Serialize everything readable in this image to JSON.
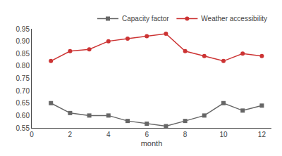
{
  "chart_data": {
    "type": "line",
    "xlabel": "month",
    "x": [
      1,
      2,
      3,
      4,
      5,
      6,
      7,
      8,
      9,
      10,
      11,
      12
    ],
    "series": [
      {
        "name": "Capacity factor",
        "color": "#666666",
        "marker": "square",
        "values": [
          0.65,
          0.61,
          0.6,
          0.6,
          0.578,
          0.567,
          0.557,
          0.578,
          0.6,
          0.65,
          0.62,
          0.64
        ]
      },
      {
        "name": "Weather accessibility",
        "color": "#cc3333",
        "marker": "circle",
        "values": [
          0.82,
          0.86,
          0.867,
          0.9,
          0.91,
          0.92,
          0.93,
          0.86,
          0.84,
          0.82,
          0.85,
          0.84
        ]
      }
    ],
    "xlim": [
      0,
      12.5
    ],
    "xticks": [
      0,
      2,
      4,
      6,
      8,
      10,
      12
    ],
    "ylim": [
      0.55,
      0.95
    ],
    "yticks": [
      0.55,
      {
        "value": 0.6,
        "label": "0.60"
      },
      0.65,
      {
        "value": 0.7,
        "label": "0.70"
      },
      0.75,
      {
        "value": 0.8,
        "label": "0.80"
      },
      0.85,
      {
        "value": 0.9,
        "label": "0.90"
      },
      0.95
    ],
    "grid": false,
    "legend": "upper right"
  }
}
